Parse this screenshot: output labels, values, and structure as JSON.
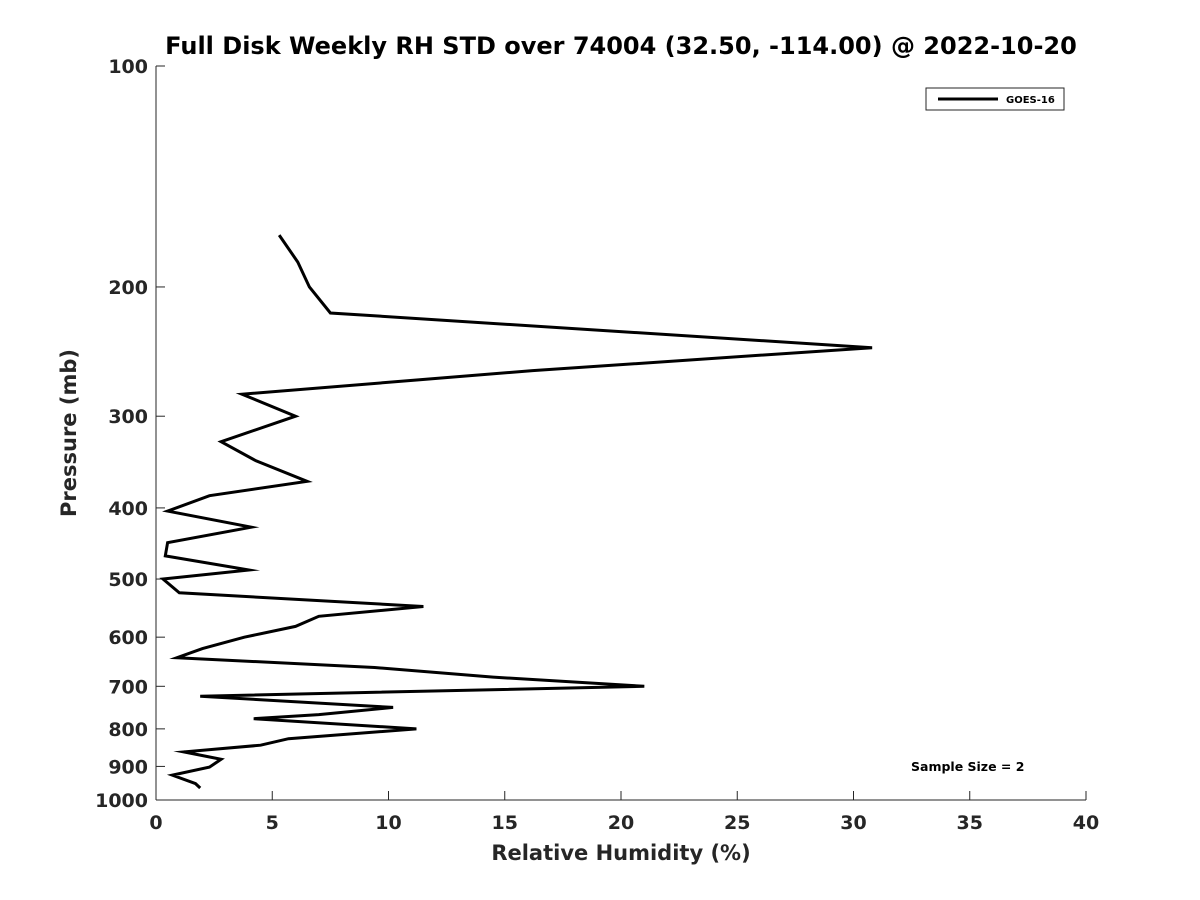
{
  "chart_data": {
    "type": "line",
    "title": "Full Disk Weekly RH STD over 74004 (32.50, -114.00) @ 2022-10-20",
    "xlabel": "Relative Humidity (%)",
    "ylabel": "Pressure (mb)",
    "xlim": [
      0,
      40
    ],
    "ylim": [
      100,
      1000
    ],
    "yscale": "log",
    "y_reversed": true,
    "xticks": [
      0,
      5,
      10,
      15,
      20,
      25,
      30,
      35,
      40
    ],
    "yticks": [
      100,
      200,
      300,
      400,
      500,
      600,
      700,
      800,
      900,
      1000
    ],
    "legend": {
      "position": "top-right"
    },
    "annotation": "Sample Size = 2",
    "series": [
      {
        "name": "GOES-16",
        "color": "#000000",
        "points": [
          [
            5.3,
            170
          ],
          [
            6.1,
            185
          ],
          [
            6.6,
            200
          ],
          [
            7.5,
            217
          ],
          [
            30.8,
            242
          ],
          [
            16.2,
            260
          ],
          [
            3.7,
            280
          ],
          [
            6.0,
            300
          ],
          [
            2.8,
            325
          ],
          [
            4.3,
            345
          ],
          [
            6.5,
            368
          ],
          [
            2.3,
            385
          ],
          [
            0.5,
            404
          ],
          [
            4.1,
            425
          ],
          [
            0.5,
            446
          ],
          [
            0.4,
            465
          ],
          [
            4.0,
            486
          ],
          [
            0.3,
            500
          ],
          [
            1.0,
            522
          ],
          [
            11.5,
            545
          ],
          [
            7.0,
            562
          ],
          [
            6.0,
            580
          ],
          [
            3.8,
            600
          ],
          [
            2.0,
            622
          ],
          [
            0.9,
            640
          ],
          [
            9.4,
            660
          ],
          [
            14.5,
            680
          ],
          [
            21.0,
            700
          ],
          [
            1.9,
            722
          ],
          [
            10.2,
            748
          ],
          [
            7.0,
            765
          ],
          [
            4.2,
            775
          ],
          [
            11.2,
            800
          ],
          [
            5.7,
            825
          ],
          [
            4.5,
            842
          ],
          [
            1.2,
            860
          ],
          [
            2.8,
            880
          ],
          [
            2.3,
            902
          ],
          [
            0.7,
            925
          ],
          [
            1.7,
            950
          ],
          [
            1.9,
            963
          ]
        ]
      }
    ]
  }
}
